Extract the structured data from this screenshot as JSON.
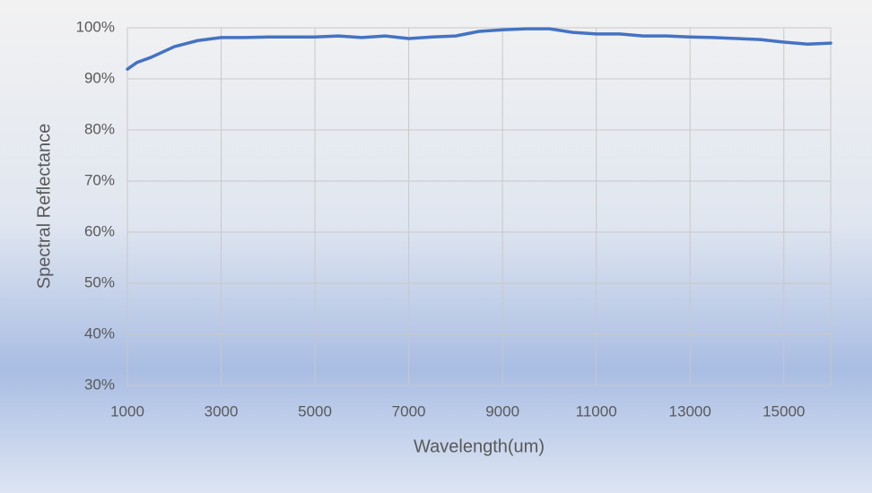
{
  "chart_data": {
    "type": "line",
    "x_label": "Wavelength(um)",
    "y_label": "Spectral Reflectance",
    "x": [
      1000,
      1200,
      1500,
      2000,
      2500,
      3000,
      3500,
      4000,
      5000,
      5500,
      6000,
      6500,
      7000,
      7500,
      8000,
      8500,
      9000,
      9500,
      10000,
      10500,
      11000,
      11500,
      12000,
      12500,
      13000,
      13500,
      14000,
      14500,
      15000,
      15500,
      16000
    ],
    "series": [
      {
        "color": "#4472c4",
        "values": [
          91.9,
          93.2,
          94.2,
          96.3,
          97.5,
          98.1,
          98.1,
          98.2,
          98.2,
          98.4,
          98.1,
          98.4,
          97.9,
          98.2,
          98.4,
          99.3,
          99.6,
          99.8,
          99.8,
          99.1,
          98.8,
          98.8,
          98.4,
          98.4,
          98.2,
          98.1,
          97.9,
          97.7,
          97.2,
          96.8,
          97.0
        ]
      }
    ],
    "xlim": [
      1000,
      16000
    ],
    "xticks": [
      1000,
      3000,
      5000,
      7000,
      9000,
      11000,
      13000,
      15000
    ],
    "ylim": [
      30,
      100
    ],
    "yticks": [
      {
        "value": 30,
        "label": "30%"
      },
      {
        "value": 40,
        "label": "40%"
      },
      {
        "value": 50,
        "label": "50%"
      },
      {
        "value": 60,
        "label": "60%"
      },
      {
        "value": 70,
        "label": "70%"
      },
      {
        "value": 80,
        "label": "80%"
      },
      {
        "value": 90,
        "label": "90%"
      },
      {
        "value": 100,
        "label": "100%"
      }
    ],
    "grid": true
  }
}
